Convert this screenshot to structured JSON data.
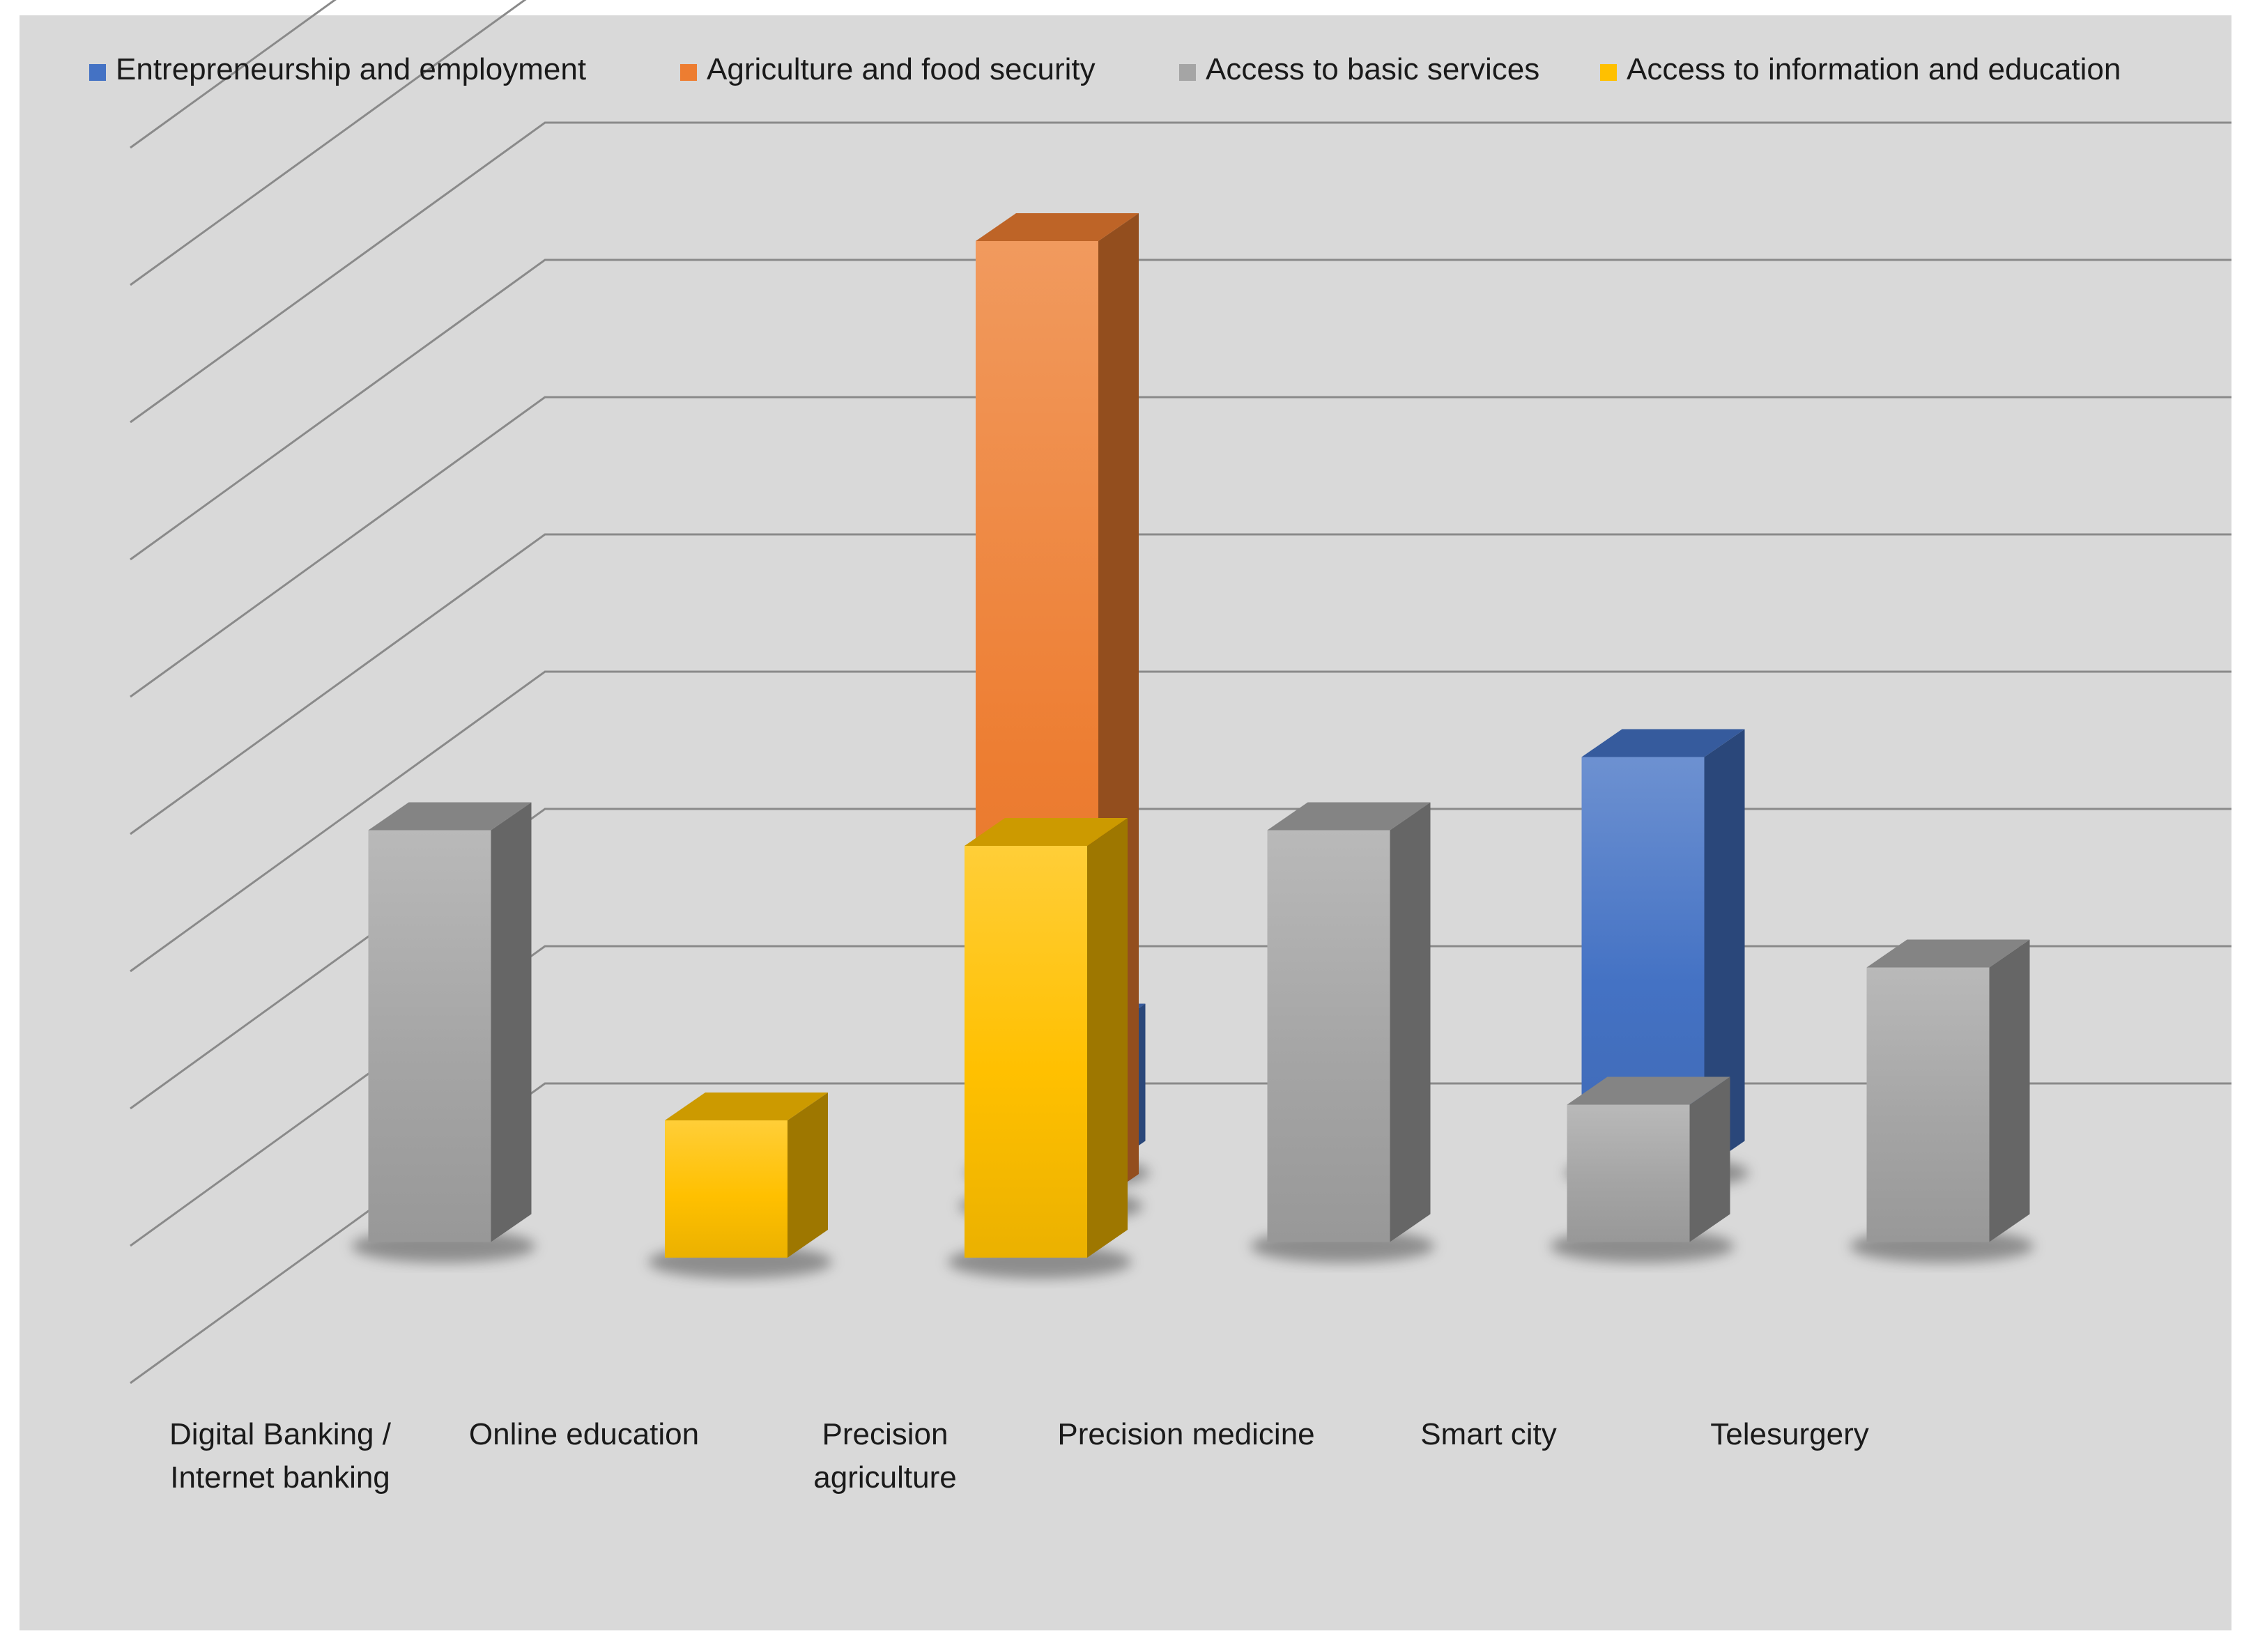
{
  "colors": {
    "background": "#d9d9d9",
    "gridline": "#8a8a8a",
    "legend_text": "#1a1a1a",
    "category_text": "#1a1a1a"
  },
  "chart_data": {
    "type": "bar",
    "variant": "3d-clustered-column",
    "title": "",
    "xlabel": "",
    "ylabel": "",
    "ylim": [
      0,
      9
    ],
    "grid": true,
    "legend_position": "top",
    "categories": [
      "Digital Banking / Internet banking",
      "Online education",
      "Precision agriculture",
      "Precision medicine",
      "Smart city",
      "Telesurgery"
    ],
    "series": [
      {
        "name": "Entrepreneurship and employment",
        "color": "#4472c4",
        "values": [
          null,
          null,
          1,
          null,
          3,
          null
        ]
      },
      {
        "name": "Agriculture and food security",
        "color": "#ed7d31",
        "values": [
          null,
          null,
          7,
          null,
          null,
          null
        ]
      },
      {
        "name": "Access to basic services",
        "color": "#a5a5a5",
        "values": [
          3,
          null,
          null,
          3,
          1,
          2
        ]
      },
      {
        "name": "Access to information and education",
        "color": "#ffc000",
        "values": [
          null,
          1,
          3,
          null,
          null,
          null
        ]
      }
    ]
  }
}
